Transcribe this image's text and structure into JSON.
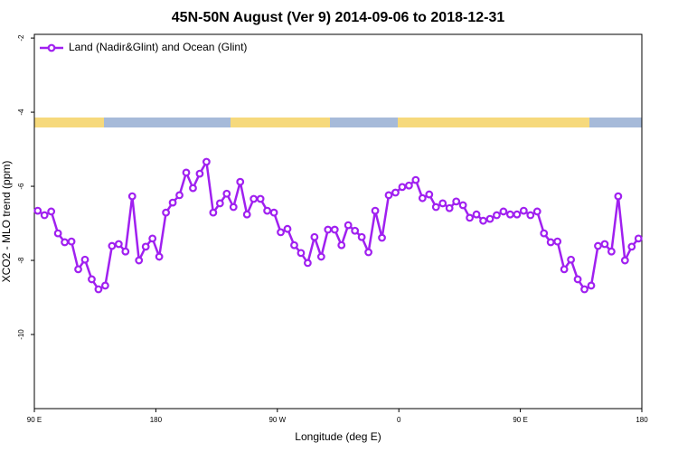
{
  "chart_data": {
    "type": "line",
    "title": "45N-50N August (Ver 9)   2014-09-06 to 2018-12-31",
    "xlabel": "Longitude (deg E)",
    "ylabel": "XCO2 - MLO trend (ppm)",
    "x": [
      92.5,
      97.5,
      102.5,
      107.5,
      112.5,
      117.5,
      122.5,
      127.5,
      132.5,
      137.5,
      142.5,
      147.5,
      152.5,
      157.5,
      162.5,
      167.5,
      172.5,
      177.5,
      182.5,
      187.5,
      192.5,
      197.5,
      202.5,
      207.5,
      212.5,
      217.5,
      222.5,
      227.5,
      232.5,
      237.5,
      242.5,
      247.5,
      252.5,
      257.5,
      262.5,
      267.5,
      272.5,
      277.5,
      282.5,
      287.5,
      292.5,
      297.5,
      302.5,
      307.5,
      312.5,
      317.5,
      322.5,
      327.5,
      332.5,
      337.5,
      342.5,
      347.5,
      352.5,
      357.5,
      362.5,
      367.5,
      372.5,
      377.5,
      382.5,
      387.5,
      392.5,
      397.5,
      402.5,
      407.5,
      412.5,
      417.5,
      422.5,
      427.5,
      432.5,
      437.5,
      442.5,
      447.5,
      452.5,
      457.5,
      462.5,
      467.5,
      472.5,
      477.5,
      482.5,
      487.5,
      492.5,
      497.5,
      502.5,
      507.5,
      512.5,
      517.5,
      522.5,
      527.5,
      532.5,
      537.5
    ],
    "series": [
      {
        "name": "Land (Nadir&Glint) and Ocean (Glint)",
        "color": "#a020f0",
        "values": [
          -6.66,
          -6.78,
          -6.68,
          -7.27,
          -7.51,
          -7.49,
          -8.24,
          -7.98,
          -8.51,
          -8.78,
          -8.68,
          -7.61,
          -7.56,
          -7.76,
          -6.27,
          -8.0,
          -7.63,
          -7.41,
          -7.9,
          -6.71,
          -6.44,
          -6.24,
          -5.63,
          -6.05,
          -5.66,
          -5.34,
          -6.71,
          -6.46,
          -6.2,
          -6.56,
          -5.88,
          -6.76,
          -6.34,
          -6.34,
          -6.66,
          -6.71,
          -7.24,
          -7.15,
          -7.59,
          -7.8,
          -8.07,
          -7.37,
          -7.9,
          -7.17,
          -7.17,
          -7.59,
          -7.05,
          -7.2,
          -7.37,
          -7.78,
          -6.66,
          -7.39,
          -6.24,
          -6.17,
          -6.02,
          -5.98,
          -5.83,
          -6.32,
          -6.22,
          -6.56,
          -6.46,
          -6.59,
          -6.41,
          -6.51,
          -6.85,
          -6.76,
          -6.93,
          -6.88,
          -6.78,
          -6.68,
          -6.76,
          -6.76,
          -6.66,
          -6.78,
          -6.68,
          -7.27,
          -7.51,
          -7.49,
          -8.24,
          -7.98,
          -8.51,
          -8.78,
          -8.68,
          -7.61,
          -7.56,
          -7.76,
          -6.27,
          -8.0,
          -7.63,
          -7.41
        ]
      }
    ],
    "xlim": [
      90,
      540
    ],
    "xticks": [
      {
        "value": 90,
        "label": "90 E"
      },
      {
        "value": 180,
        "label": "180"
      },
      {
        "value": 270,
        "label": "90 W"
      },
      {
        "value": 360,
        "label": "0"
      },
      {
        "value": 450,
        "label": "90 E"
      },
      {
        "value": 540,
        "label": "180"
      }
    ],
    "ylim": [
      -12,
      -1.9
    ],
    "yticks": [
      -2,
      -4,
      -6,
      -8,
      -10
    ],
    "legend": "top-left"
  }
}
